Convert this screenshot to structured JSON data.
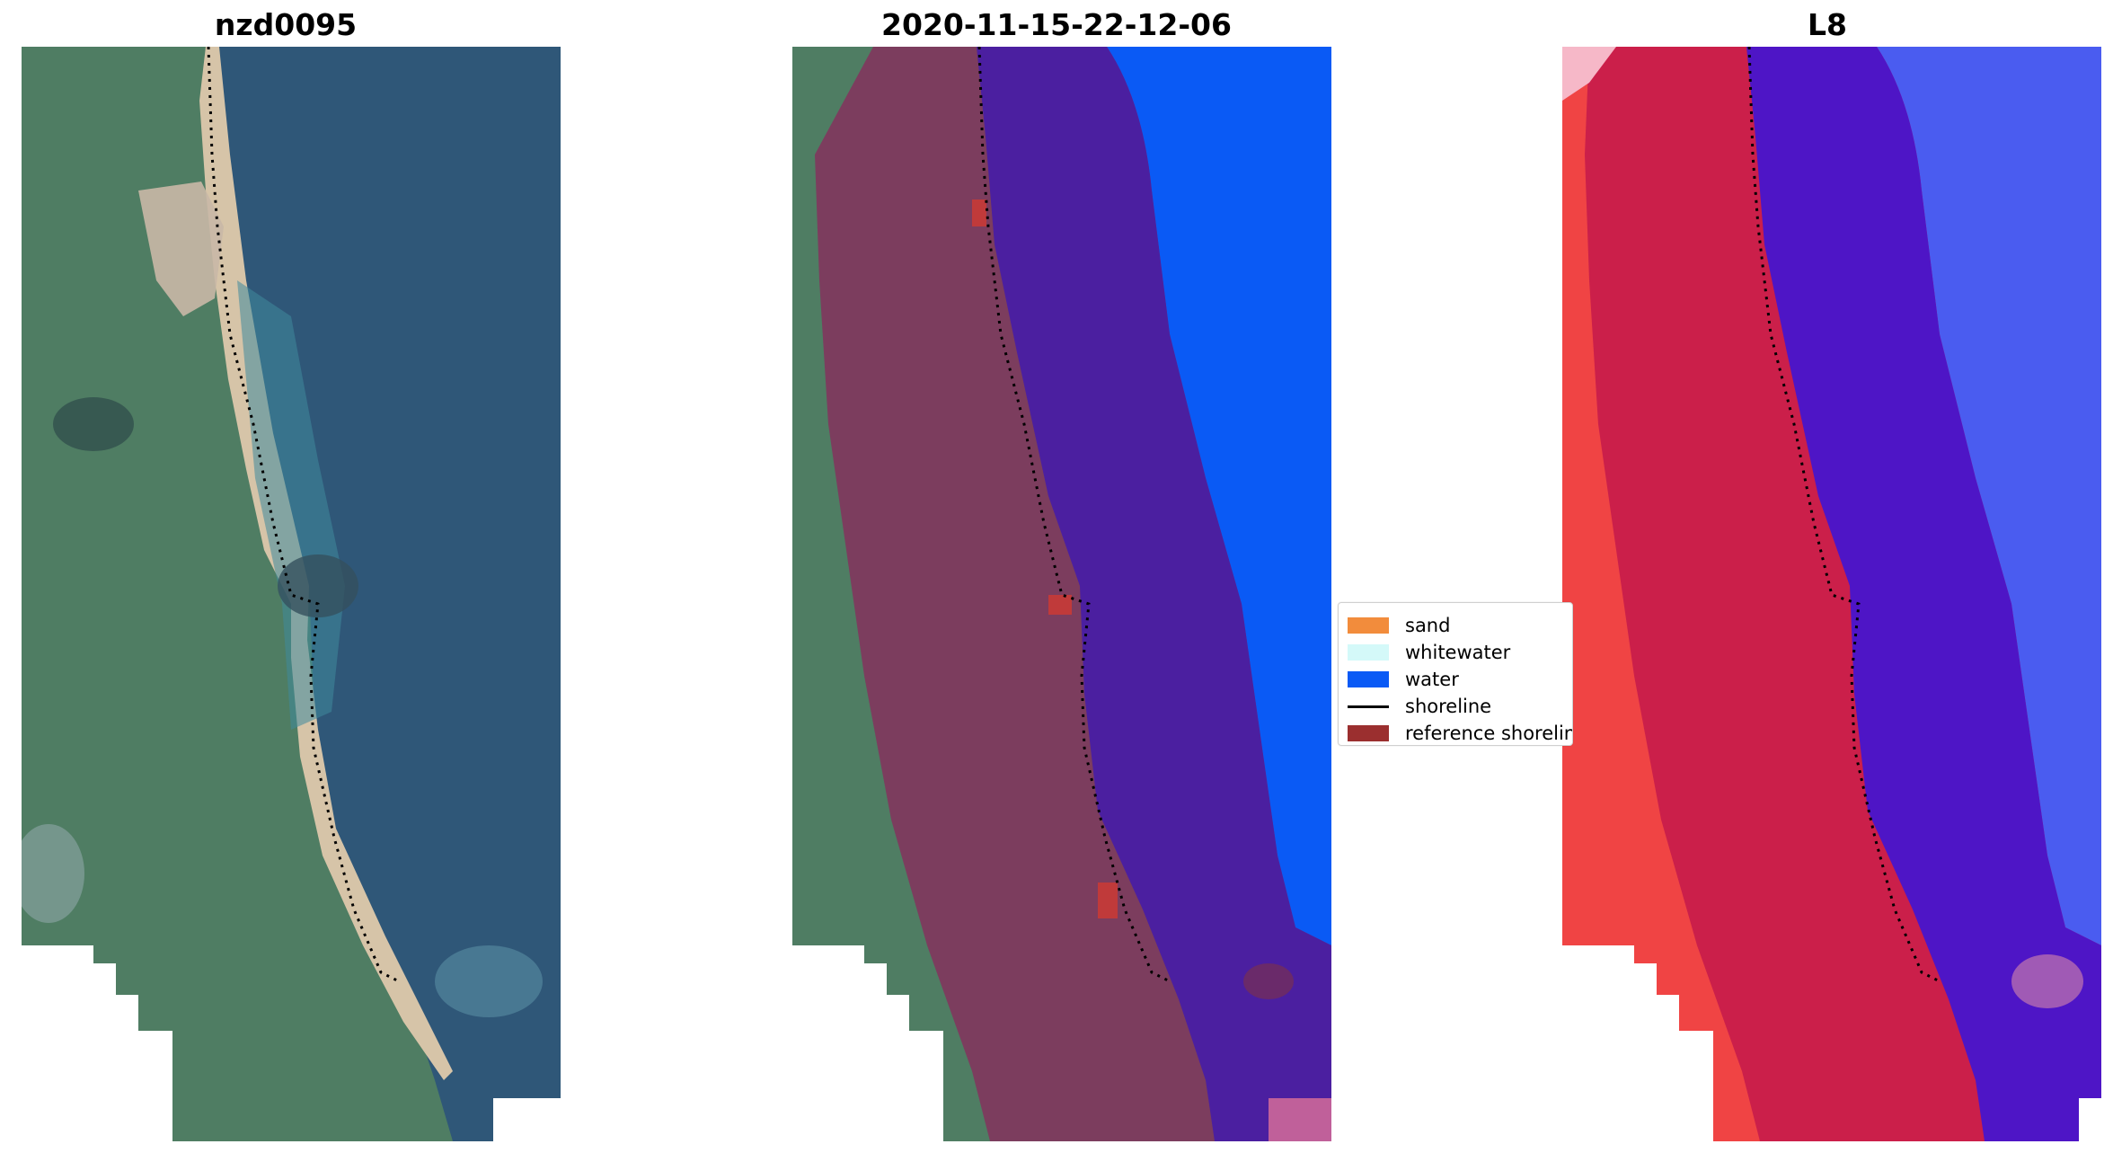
{
  "panels": [
    {
      "title": "nzd0095"
    },
    {
      "title": "2020-11-15-22-12-06"
    },
    {
      "title": "L8"
    }
  ],
  "legend": {
    "items": [
      {
        "label": "sand",
        "color": "#f28c3c",
        "type": "patch"
      },
      {
        "label": "whitewater",
        "color": "#d4f9f9",
        "type": "patch"
      },
      {
        "label": "water",
        "color": "#0a5af5",
        "type": "patch"
      },
      {
        "label": "shoreline",
        "color": "#000000",
        "type": "line"
      },
      {
        "label": "reference shoreline",
        "color": "#9b2f2f",
        "type": "patch"
      }
    ]
  },
  "colors": {
    "land": "#4f7d63",
    "ocean": "#2f5778",
    "sand_beach": "#d6c4a8",
    "overlay_land": "#7e3b5e",
    "overlay_water": "#4b1fa0",
    "water_class": "#0a5af5",
    "ndwi_land": "#c81e4b",
    "ndwi_edge": "#f04444",
    "ndwi_water": "#4e15c6",
    "ndwi_ocean": "#4a5cf0"
  }
}
